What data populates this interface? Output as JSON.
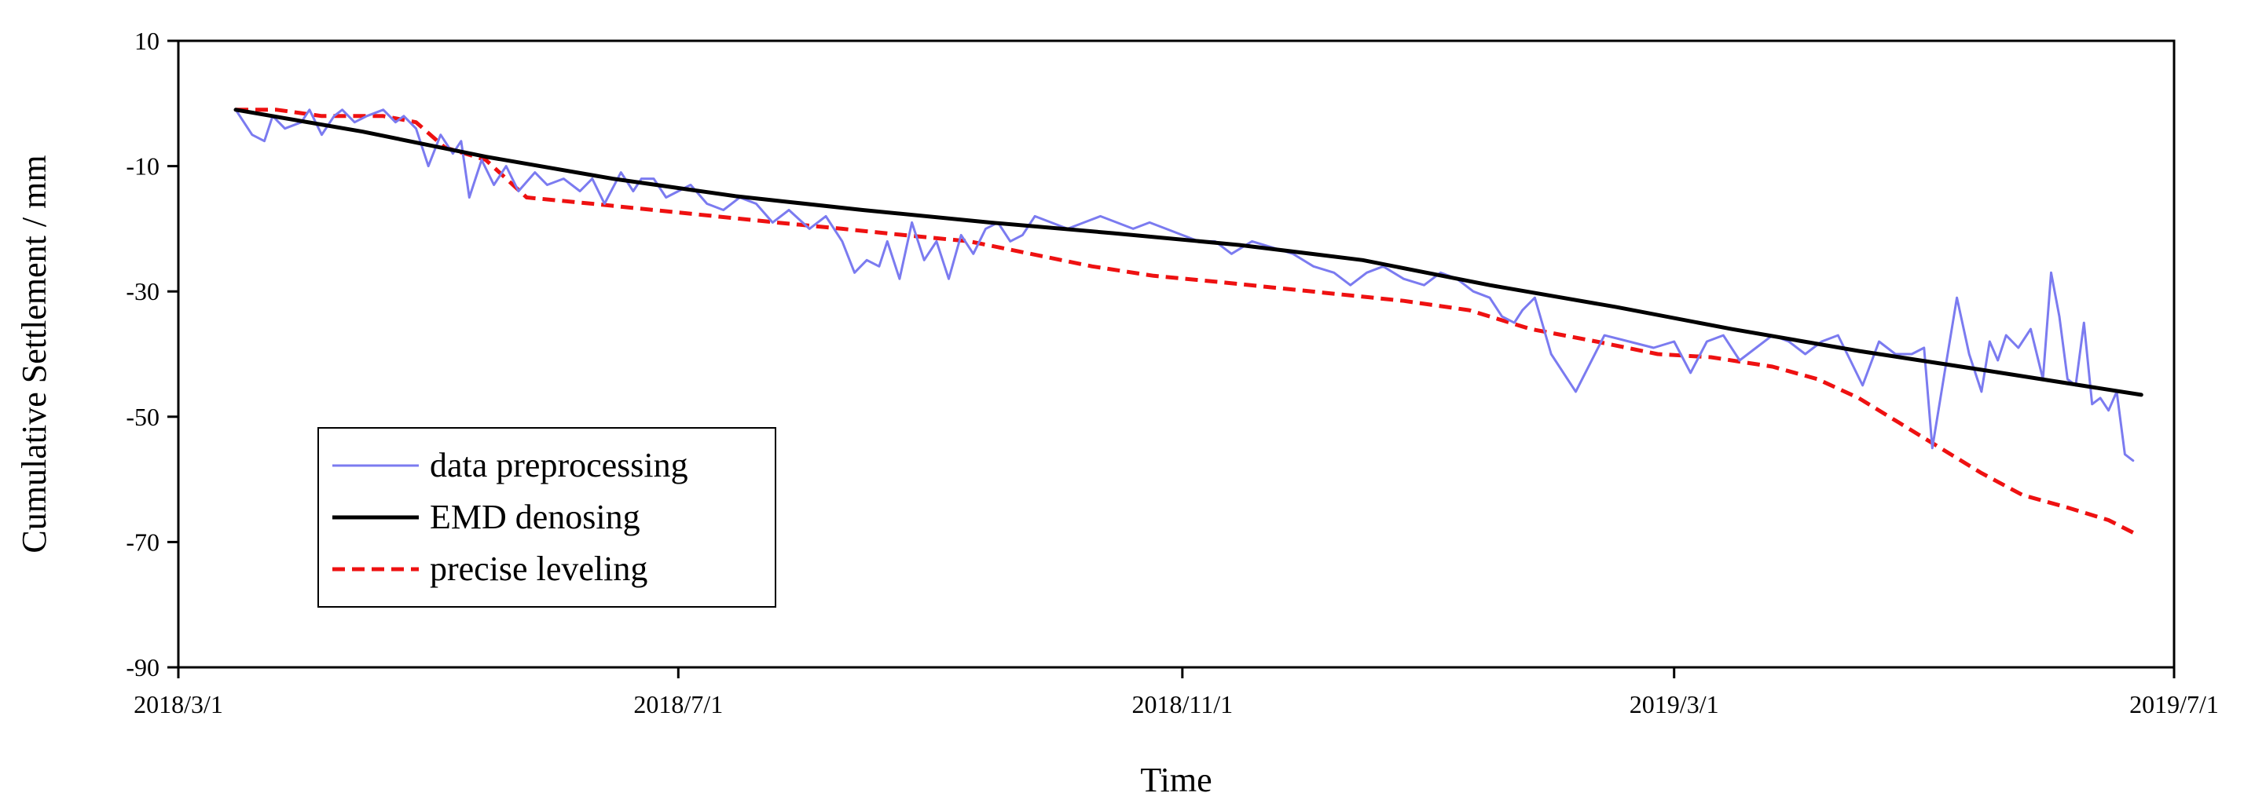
{
  "chart_data": {
    "type": "line",
    "title": "",
    "xlabel": "Time",
    "ylabel": "Cumulative Settlement / mm",
    "xlim": [
      "2018-03-01",
      "2019-07-01"
    ],
    "ylim": [
      -90,
      10
    ],
    "x_ticks": [
      {
        "date": "2018-03-01",
        "label": "2018/3/1"
      },
      {
        "date": "2018-07-01",
        "label": "2018/7/1"
      },
      {
        "date": "2018-11-01",
        "label": "2018/11/1"
      },
      {
        "date": "2019-03-01",
        "label": "2019/3/1"
      },
      {
        "date": "2019-07-01",
        "label": "2019/7/1"
      }
    ],
    "y_ticks": [
      10,
      -10,
      -30,
      -50,
      -70,
      -90
    ],
    "legend_position": "bottom-left",
    "grid": false,
    "series": [
      {
        "name": "data preprocessing",
        "color": "#7B7BF0",
        "style": "solid",
        "x": [
          "2018-03-15",
          "2018-03-19",
          "2018-03-22",
          "2018-03-24",
          "2018-03-27",
          "2018-03-31",
          "2018-04-02",
          "2018-04-05",
          "2018-04-08",
          "2018-04-10",
          "2018-04-13",
          "2018-04-16",
          "2018-04-20",
          "2018-04-23",
          "2018-04-25",
          "2018-04-28",
          "2018-05-01",
          "2018-05-04",
          "2018-05-07",
          "2018-05-09",
          "2018-05-11",
          "2018-05-14",
          "2018-05-17",
          "2018-05-20",
          "2018-05-23",
          "2018-05-27",
          "2018-05-30",
          "2018-06-03",
          "2018-06-07",
          "2018-06-10",
          "2018-06-13",
          "2018-06-17",
          "2018-06-20",
          "2018-06-22",
          "2018-06-25",
          "2018-06-28",
          "2018-07-01",
          "2018-07-04",
          "2018-07-08",
          "2018-07-12",
          "2018-07-16",
          "2018-07-20",
          "2018-07-24",
          "2018-07-28",
          "2018-08-02",
          "2018-08-06",
          "2018-08-10",
          "2018-08-13",
          "2018-08-16",
          "2018-08-19",
          "2018-08-21",
          "2018-08-24",
          "2018-08-27",
          "2018-08-30",
          "2018-09-02",
          "2018-09-05",
          "2018-09-08",
          "2018-09-11",
          "2018-09-14",
          "2018-09-17",
          "2018-09-20",
          "2018-09-23",
          "2018-09-26",
          "2018-09-30",
          "2018-10-04",
          "2018-10-08",
          "2018-10-12",
          "2018-10-16",
          "2018-10-20",
          "2018-10-24",
          "2018-10-28",
          "2018-11-01",
          "2018-11-05",
          "2018-11-09",
          "2018-11-13",
          "2018-11-18",
          "2018-11-23",
          "2018-11-28",
          "2018-12-03",
          "2018-12-08",
          "2018-12-12",
          "2018-12-16",
          "2018-12-20",
          "2018-12-25",
          "2018-12-30",
          "2019-01-03",
          "2019-01-07",
          "2019-01-11",
          "2019-01-15",
          "2019-01-18",
          "2019-01-21",
          "2019-01-23",
          "2019-01-26",
          "2019-01-30",
          "2019-02-05",
          "2019-02-12",
          "2019-02-18",
          "2019-02-24",
          "2019-03-01",
          "2019-03-05",
          "2019-03-09",
          "2019-03-13",
          "2019-03-17",
          "2019-03-21",
          "2019-03-25",
          "2019-03-29",
          "2019-04-02",
          "2019-04-06",
          "2019-04-10",
          "2019-04-13",
          "2019-04-16",
          "2019-04-20",
          "2019-04-24",
          "2019-04-28",
          "2019-05-01",
          "2019-05-03",
          "2019-05-06",
          "2019-05-09",
          "2019-05-12",
          "2019-05-15",
          "2019-05-17",
          "2019-05-19",
          "2019-05-21",
          "2019-05-24",
          "2019-05-27",
          "2019-05-30",
          "2019-06-01",
          "2019-06-03",
          "2019-06-05",
          "2019-06-07",
          "2019-06-09",
          "2019-06-11",
          "2019-06-13",
          "2019-06-15",
          "2019-06-17",
          "2019-06-19",
          "2019-06-21"
        ],
        "y": [
          -1,
          -5,
          -6,
          -2,
          -4,
          -3,
          -1,
          -5,
          -2,
          -1,
          -3,
          -2,
          -1,
          -3,
          -2,
          -4,
          -10,
          -5,
          -8,
          -6,
          -15,
          -9,
          -13,
          -10,
          -14,
          -11,
          -13,
          -12,
          -14,
          -12,
          -16,
          -11,
          -14,
          -12,
          -12,
          -15,
          -14,
          -13,
          -16,
          -17,
          -15,
          -16,
          -19,
          -17,
          -20,
          -18,
          -22,
          -27,
          -25,
          -26,
          -22,
          -28,
          -19,
          -25,
          -22,
          -28,
          -21,
          -24,
          -20,
          -19,
          -22,
          -21,
          -18,
          -19,
          -20,
          -19,
          -18,
          -19,
          -20,
          -19,
          -20,
          -21,
          -22,
          -22,
          -24,
          -22,
          -23,
          -24,
          -26,
          -27,
          -29,
          -27,
          -26,
          -28,
          -29,
          -27,
          -28,
          -30,
          -31,
          -34,
          -35,
          -33,
          -31,
          -40,
          -46,
          -37,
          -38,
          -39,
          -38,
          -43,
          -38,
          -37,
          -41,
          -39,
          -37,
          -38,
          -40,
          -38,
          -37,
          -41,
          -45,
          -38,
          -40,
          -40,
          -39,
          -55,
          -43,
          -31,
          -40,
          -46,
          -38,
          -41,
          -37,
          -39,
          -36,
          -44,
          -27,
          -34,
          -44,
          -45,
          -35,
          -48,
          -47,
          -49,
          -46,
          -56,
          -57
        ]
      },
      {
        "name": "EMD denosing",
        "color": "#000000",
        "style": "solid",
        "x": [
          "2018-03-15",
          "2018-04-15",
          "2018-05-15",
          "2018-06-15",
          "2018-07-15",
          "2018-08-15",
          "2018-09-15",
          "2018-10-15",
          "2018-11-15",
          "2018-12-15",
          "2019-01-15",
          "2019-02-15",
          "2019-03-15",
          "2019-04-15",
          "2019-05-15",
          "2019-06-23"
        ],
        "y": [
          -1,
          -4.5,
          -8.5,
          -12,
          -14.8,
          -17,
          -19,
          -20.7,
          -22.6,
          -25,
          -29,
          -32.5,
          -36,
          -39.5,
          -42.5,
          -46.5
        ]
      },
      {
        "name": "precise leveling",
        "color": "#EE1111",
        "style": "dashed",
        "x": [
          "2018-03-15",
          "2018-03-25",
          "2018-04-05",
          "2018-04-20",
          "2018-04-28",
          "2018-05-05",
          "2018-05-15",
          "2018-05-25",
          "2018-06-10",
          "2018-06-25",
          "2018-07-10",
          "2018-07-25",
          "2018-08-10",
          "2018-08-25",
          "2018-09-10",
          "2018-09-25",
          "2018-10-10",
          "2018-10-25",
          "2018-11-10",
          "2018-11-25",
          "2018-12-10",
          "2018-12-25",
          "2019-01-10",
          "2019-01-25",
          "2019-02-10",
          "2019-02-25",
          "2019-03-10",
          "2019-03-25",
          "2019-04-05",
          "2019-04-15",
          "2019-04-25",
          "2019-05-05",
          "2019-05-15",
          "2019-05-25",
          "2019-06-05",
          "2019-06-15",
          "2019-06-21"
        ],
        "y": [
          -1,
          -1,
          -2,
          -2,
          -3,
          -7,
          -9,
          -15,
          -16,
          -17,
          -18,
          -19,
          -20,
          -21,
          -22,
          -24,
          -26,
          -27.5,
          -28.5,
          -29.5,
          -30.5,
          -31.5,
          -33,
          -36,
          -38,
          -40,
          -40.5,
          -42,
          -44,
          -47,
          -51,
          -55,
          -59,
          -62.5,
          -64.5,
          -66.5,
          -68.5
        ]
      }
    ]
  }
}
